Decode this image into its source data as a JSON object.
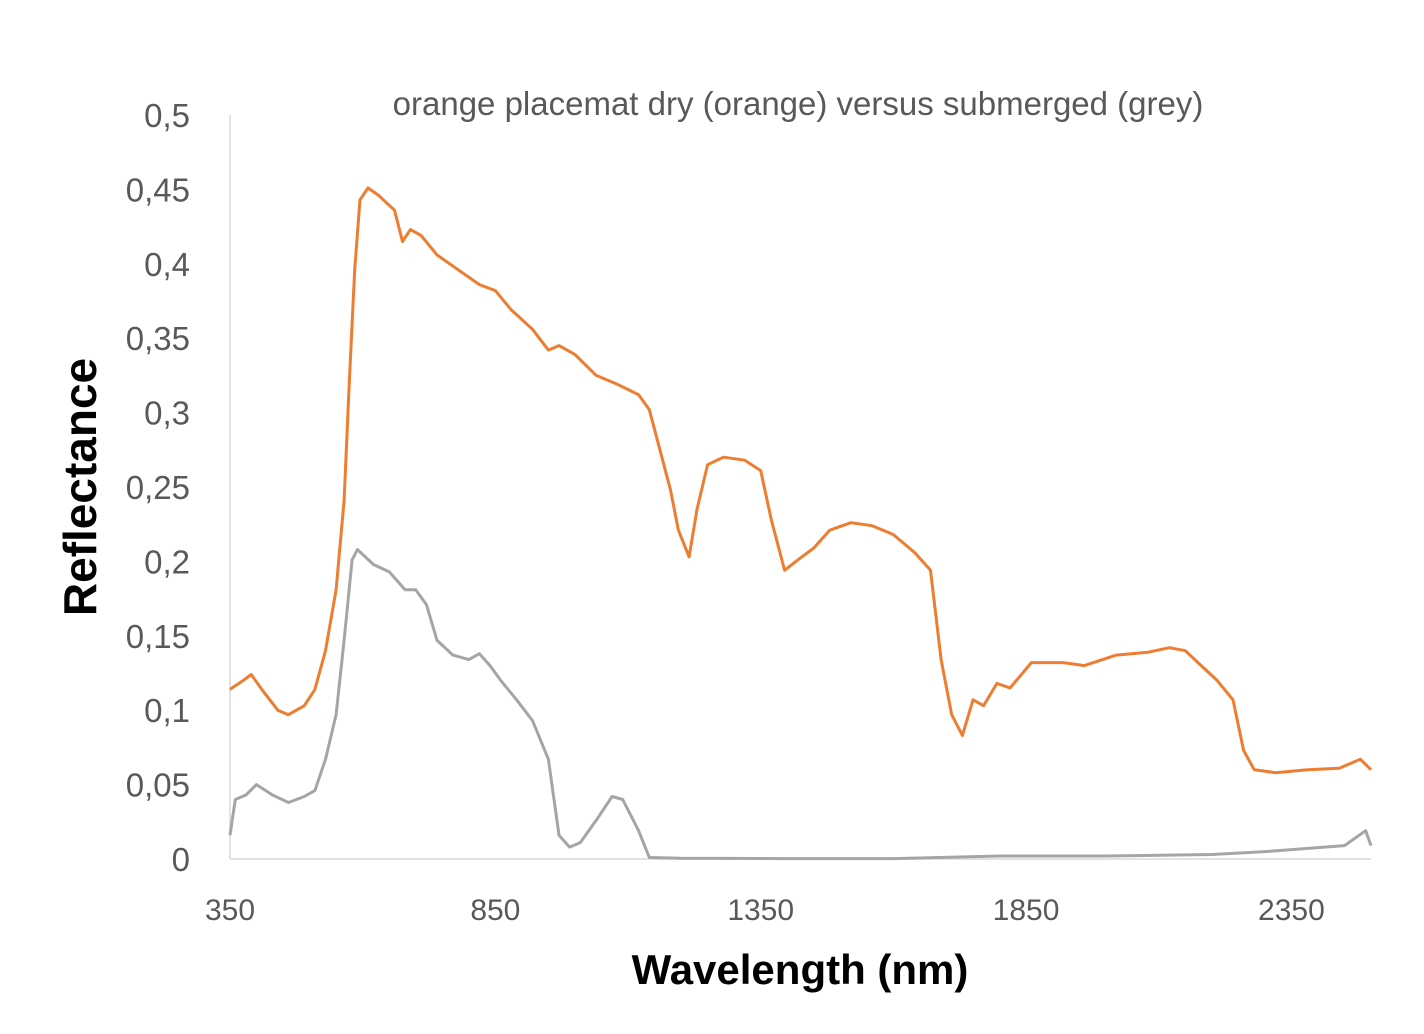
{
  "chart_data": {
    "type": "line",
    "title": "orange placemat dry (orange) versus submerged (grey)",
    "xlabel": "Wavelength (nm)",
    "ylabel": "Reflectance",
    "xlim": [
      350,
      2500
    ],
    "ylim": [
      0,
      0.5
    ],
    "grid": false,
    "legend": "none",
    "x_ticks": [
      350,
      850,
      1350,
      1850,
      2350
    ],
    "x_tick_labels": [
      "350",
      "850",
      "1350",
      "1850",
      "2350"
    ],
    "y_ticks": [
      0,
      0.05,
      0.1,
      0.15,
      0.2,
      0.25,
      0.3,
      0.35,
      0.4,
      0.45,
      0.5
    ],
    "y_tick_labels": [
      "0",
      "0,05",
      "0,1",
      "0,15",
      "0,2",
      "0,25",
      "0,3",
      "0,35",
      "0,4",
      "0,45",
      "0,5"
    ],
    "series": [
      {
        "name": "dry",
        "color": "#ED7D31",
        "x": [
          350,
          375,
          390,
          410,
          440,
          460,
          490,
          510,
          530,
          550,
          565,
          575,
          585,
          595,
          610,
          630,
          660,
          675,
          690,
          710,
          740,
          780,
          820,
          850,
          880,
          920,
          950,
          970,
          1000,
          1040,
          1080,
          1120,
          1140,
          1160,
          1180,
          1195,
          1215,
          1230,
          1250,
          1280,
          1320,
          1350,
          1370,
          1395,
          1420,
          1450,
          1480,
          1520,
          1560,
          1600,
          1640,
          1670,
          1690,
          1710,
          1730,
          1750,
          1770,
          1795,
          1820,
          1860,
          1920,
          1960,
          2020,
          2080,
          2120,
          2150,
          2180,
          2210,
          2240,
          2260,
          2280,
          2320,
          2380,
          2440,
          2480,
          2500
        ],
        "y": [
          0.114,
          0.12,
          0.124,
          0.114,
          0.1,
          0.097,
          0.103,
          0.114,
          0.14,
          0.181,
          0.241,
          0.322,
          0.396,
          0.443,
          0.451,
          0.446,
          0.436,
          0.415,
          0.423,
          0.419,
          0.406,
          0.396,
          0.386,
          0.382,
          0.369,
          0.356,
          0.342,
          0.345,
          0.339,
          0.325,
          0.319,
          0.312,
          0.302,
          0.275,
          0.248,
          0.221,
          0.203,
          0.235,
          0.265,
          0.27,
          0.268,
          0.261,
          0.228,
          0.194,
          0.201,
          0.209,
          0.221,
          0.226,
          0.224,
          0.218,
          0.206,
          0.194,
          0.134,
          0.097,
          0.083,
          0.107,
          0.103,
          0.118,
          0.115,
          0.132,
          0.132,
          0.13,
          0.137,
          0.139,
          0.142,
          0.14,
          0.13,
          0.12,
          0.107,
          0.073,
          0.06,
          0.058,
          0.06,
          0.061,
          0.067,
          0.06
        ]
      },
      {
        "name": "submerged",
        "color": "#A5A5A5",
        "x": [
          350,
          360,
          380,
          400,
          430,
          460,
          490,
          510,
          530,
          550,
          565,
          580,
          590,
          620,
          650,
          680,
          700,
          720,
          740,
          770,
          800,
          820,
          840,
          860,
          890,
          920,
          950,
          970,
          990,
          1010,
          1040,
          1070,
          1090,
          1120,
          1140,
          1200,
          1400,
          1600,
          1800,
          2000,
          2200,
          2300,
          2450,
          2490,
          2500
        ],
        "y": [
          0.016,
          0.04,
          0.043,
          0.05,
          0.043,
          0.038,
          0.042,
          0.046,
          0.067,
          0.097,
          0.147,
          0.201,
          0.208,
          0.198,
          0.193,
          0.181,
          0.181,
          0.171,
          0.147,
          0.137,
          0.134,
          0.138,
          0.13,
          0.12,
          0.107,
          0.093,
          0.067,
          0.016,
          0.008,
          0.011,
          0.026,
          0.042,
          0.04,
          0.019,
          0.001,
          0.0005,
          0.0003,
          0.0003,
          0.002,
          0.002,
          0.003,
          0.005,
          0.009,
          0.019,
          0.009
        ]
      }
    ]
  }
}
